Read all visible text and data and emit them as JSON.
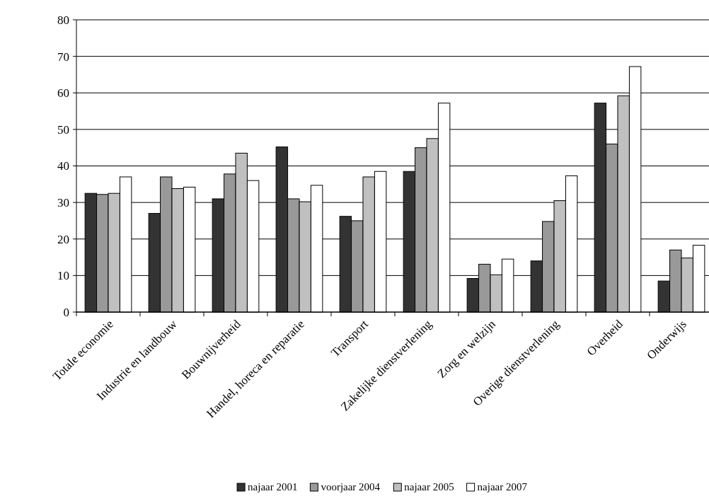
{
  "chart_data": {
    "type": "bar",
    "categories": [
      "Totale economie",
      "Industrie en landbouw",
      "Bouwnijverheid",
      "Handel, horeca en reparatie",
      "Transport",
      "Zakelijke dienstverlening",
      "Zorg en welzijn",
      "Overige dienstverlening",
      "Overheid",
      "Onderwijs"
    ],
    "series": [
      {
        "name": "najaar 2001",
        "color": "#333333",
        "values": [
          32.5,
          27,
          31,
          45.2,
          26.2,
          38.5,
          9.2,
          14,
          57.2,
          8.5
        ]
      },
      {
        "name": "voorjaar 2004",
        "color": "#999999",
        "values": [
          32.2,
          37,
          37.8,
          31,
          25,
          45,
          13.1,
          24.8,
          46,
          17
        ]
      },
      {
        "name": "najaar 2005",
        "color": "#c0c0c0",
        "values": [
          32.5,
          33.8,
          43.5,
          30.2,
          37,
          47.5,
          10.2,
          30.5,
          59.2,
          14.8
        ]
      },
      {
        "name": "najaar 2007",
        "color": "#ffffff",
        "values": [
          37,
          34.2,
          36,
          34.7,
          38.5,
          57.2,
          14.5,
          37.3,
          67.2,
          18.3
        ]
      }
    ],
    "ylim": [
      0,
      80
    ],
    "yticks": [
      0,
      10,
      20,
      30,
      40,
      50,
      60,
      70,
      80
    ],
    "grid": "y",
    "legend": "bottom"
  }
}
